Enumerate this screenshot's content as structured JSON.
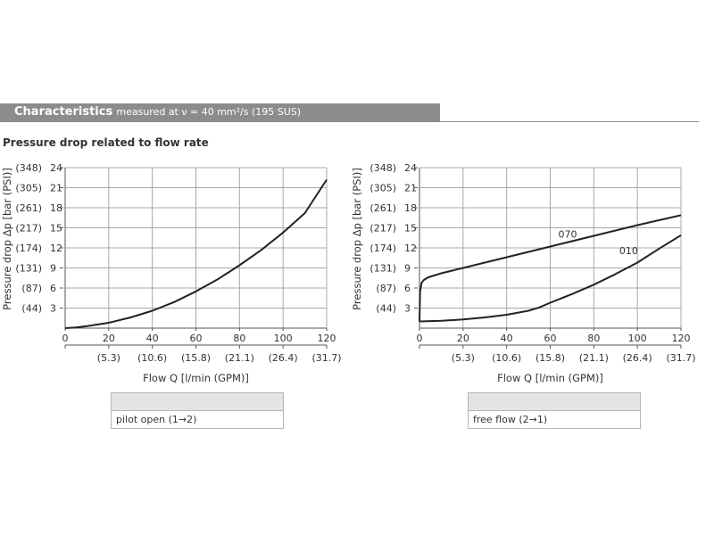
{
  "header": {
    "title": "Characteristics",
    "subtitle": "measured at ν = 40 mm²/s (195 SUS)"
  },
  "section_title": "Pressure drop related to flow rate",
  "legends": [
    {
      "label": "pilot open (1→2)"
    },
    {
      "label": "free flow (2→1)"
    }
  ],
  "chart_data": [
    {
      "type": "line",
      "title": "",
      "xlabel": "Flow Q [l/min (GPM)]",
      "ylabel": "Pressure drop Δp [bar (PSI)]",
      "xlim": [
        0,
        120
      ],
      "ylim": [
        0,
        24
      ],
      "x_ticks": [
        0,
        20,
        40,
        60,
        80,
        100,
        120
      ],
      "x_ticks_secondary": [
        "(5.3)",
        "(10.6)",
        "(15.8)",
        "(21.1)",
        "(26.4)",
        "(31.7)"
      ],
      "y_ticks": [
        3,
        6,
        9,
        12,
        15,
        18,
        21,
        24
      ],
      "y_ticks_secondary": [
        "(44)",
        "(87)",
        "(131)",
        "(174)",
        "(217)",
        "(261)",
        "(305)",
        "(348)"
      ],
      "grid": true,
      "series": [
        {
          "name": "",
          "x": [
            0,
            5,
            10,
            20,
            30,
            40,
            50,
            60,
            70,
            80,
            90,
            100,
            110,
            120
          ],
          "y": [
            0,
            0.1,
            0.3,
            0.8,
            1.6,
            2.6,
            3.9,
            5.5,
            7.3,
            9.4,
            11.7,
            14.3,
            17.2,
            22.2
          ]
        }
      ]
    },
    {
      "type": "line",
      "title": "",
      "xlabel": "Flow Q [l/min (GPM)]",
      "ylabel": "Pressure drop Δp [bar (PSI)]",
      "xlim": [
        0,
        120
      ],
      "ylim": [
        0,
        24
      ],
      "x_ticks": [
        0,
        20,
        40,
        60,
        80,
        100,
        120
      ],
      "x_ticks_secondary": [
        "(5.3)",
        "(10.6)",
        "(15.8)",
        "(21.1)",
        "(26.4)",
        "(31.7)"
      ],
      "y_ticks": [
        3,
        6,
        9,
        12,
        15,
        18,
        21,
        24
      ],
      "y_ticks_secondary": [
        "(44)",
        "(87)",
        "(131)",
        "(174)",
        "(217)",
        "(261)",
        "(305)",
        "(348)"
      ],
      "grid": true,
      "series": [
        {
          "name": "070",
          "x": [
            0,
            0.3,
            1,
            2,
            4,
            10,
            20,
            40,
            60,
            80,
            100,
            120
          ],
          "y": [
            1,
            5.5,
            6.8,
            7.2,
            7.6,
            8.2,
            9.0,
            10.6,
            12.2,
            13.8,
            15.4,
            16.9
          ]
        },
        {
          "name": "010",
          "x": [
            0,
            10,
            20,
            30,
            40,
            50,
            55,
            60,
            70,
            80,
            90,
            100,
            110,
            120
          ],
          "y": [
            1.0,
            1.1,
            1.3,
            1.6,
            2.0,
            2.6,
            3.1,
            3.8,
            5.1,
            6.5,
            8.1,
            9.8,
            11.9,
            13.9
          ]
        }
      ]
    }
  ]
}
